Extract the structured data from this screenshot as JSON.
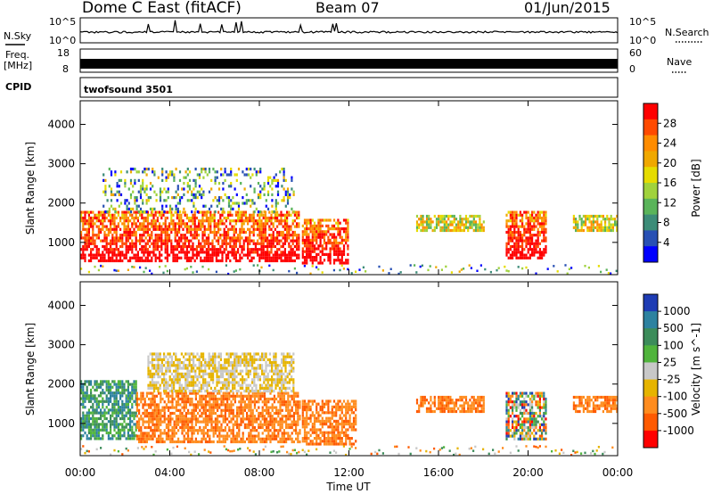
{
  "header": {
    "station": "Dome C East (fitACF)",
    "beam": "Beam 07",
    "date": "01/Jun/2015"
  },
  "panels": {
    "nsky_label": "N.Sky",
    "nsearch_label": "N.Search",
    "nsky_ticks": [
      "10^5",
      "10^0"
    ],
    "nsearch_ticks": [
      "10^5",
      "10^0"
    ],
    "freq_label_top": "Freq.",
    "freq_label_bottom": "[MHz]",
    "freq_ticks": [
      "18",
      "8"
    ],
    "nave_label": "Nave",
    "nave_ticks": [
      "60",
      "0"
    ],
    "cpid_label": "CPID",
    "cpid_value": "twofsound 3501"
  },
  "chart_data": [
    {
      "type": "heatmap",
      "name": "power",
      "ylabel": "Slant Range [km]",
      "xlabel": "",
      "x_range_hours": [
        0,
        24
      ],
      "ylim": [
        180,
        4600
      ],
      "yticks": [
        "4000",
        "3000",
        "2000",
        "1000"
      ],
      "colorbar": {
        "label": "Power [dB]",
        "ticks": [
          "28",
          "24",
          "20",
          "16",
          "12",
          "8",
          "4"
        ],
        "colors": [
          "#ff0000",
          "#ff4a00",
          "#ff8c00",
          "#f0a800",
          "#e6dc00",
          "#a0d23c",
          "#5ab45a",
          "#3c8c78",
          "#2850b4",
          "#0000ff"
        ]
      },
      "echo_regions": [
        {
          "t0": 0.0,
          "t1": 9.8,
          "r0": 500,
          "r1": 1800,
          "intensity": "high"
        },
        {
          "t0": 1.0,
          "t1": 9.5,
          "r0": 1800,
          "r1": 2900,
          "intensity": "low"
        },
        {
          "t0": 9.9,
          "t1": 12.0,
          "r0": 500,
          "r1": 1600,
          "intensity": "high"
        },
        {
          "t0": 15.0,
          "t1": 18.0,
          "r0": 1300,
          "r1": 1700,
          "intensity": "medium"
        },
        {
          "t0": 19.0,
          "t1": 20.8,
          "r0": 600,
          "r1": 1800,
          "intensity": "high"
        },
        {
          "t0": 22.0,
          "t1": 24.0,
          "r0": 1300,
          "r1": 1700,
          "intensity": "medium"
        }
      ]
    },
    {
      "type": "heatmap",
      "name": "velocity",
      "ylabel": "Slant Range [km]",
      "xlabel": "Time UT",
      "x_range_hours": [
        0,
        24
      ],
      "xticks": [
        "00:00",
        "04:00",
        "08:00",
        "12:00",
        "16:00",
        "20:00",
        "00:00"
      ],
      "ylim": [
        180,
        4600
      ],
      "yticks": [
        "4000",
        "3000",
        "2000",
        "1000"
      ],
      "colorbar": {
        "label": "Velocity [m s^-1]",
        "ticks": [
          "1000",
          "500",
          "100",
          "25",
          "-25",
          "-100",
          "-500",
          "-1000"
        ],
        "colors": [
          "#1e3cb4",
          "#2d82a0",
          "#3c8c5a",
          "#50b43c",
          "#c8c8c8",
          "#e6b400",
          "#ff8c1e",
          "#ff5a00",
          "#ff0000"
        ]
      },
      "echo_regions": [
        {
          "t0": 0.0,
          "t1": 2.5,
          "r0": 600,
          "r1": 2100,
          "dominant_velocity": "positive"
        },
        {
          "t0": 2.5,
          "t1": 9.8,
          "r0": 500,
          "r1": 1800,
          "dominant_velocity": "negative"
        },
        {
          "t0": 3.0,
          "t1": 9.5,
          "r0": 1800,
          "r1": 2800,
          "dominant_velocity": "near zero"
        },
        {
          "t0": 9.9,
          "t1": 12.3,
          "r0": 500,
          "r1": 1600,
          "dominant_velocity": "negative"
        },
        {
          "t0": 15.0,
          "t1": 18.0,
          "r0": 1300,
          "r1": 1700,
          "dominant_velocity": "negative"
        },
        {
          "t0": 19.0,
          "t1": 20.8,
          "r0": 600,
          "r1": 1800,
          "dominant_velocity": "mixed"
        },
        {
          "t0": 22.0,
          "t1": 24.0,
          "r0": 1300,
          "r1": 1700,
          "dominant_velocity": "negative"
        }
      ]
    }
  ]
}
